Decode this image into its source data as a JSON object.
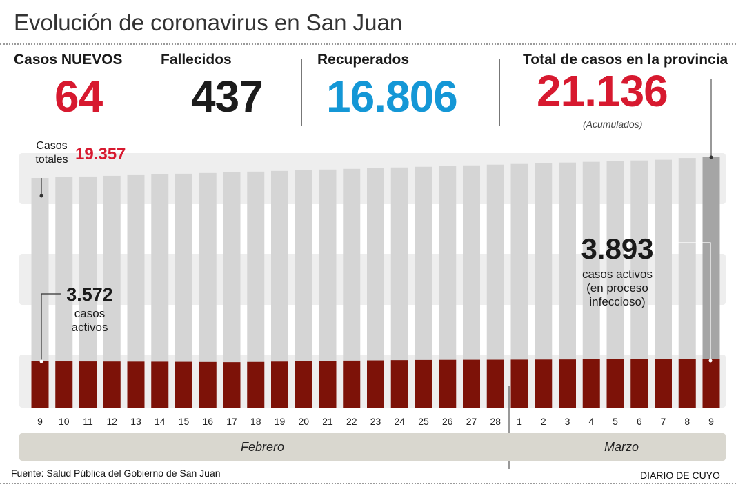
{
  "title": "Evolución de coronavirus en San Juan",
  "stats": {
    "new": {
      "label": "Casos NUEVOS",
      "value": "64"
    },
    "deaths": {
      "label": "Fallecidos",
      "value": "437"
    },
    "recovered": {
      "label": "Recuperados",
      "value": "16.806"
    },
    "total": {
      "label": "Total de casos en la provincia",
      "value": "21.136",
      "note": "(Acumulados)"
    }
  },
  "colors": {
    "red": "#d7192f",
    "blue": "#1497d6",
    "dark": "#1c1c1c",
    "bar_total": "#d5d5d5",
    "bar_total_last": "#a5a5a5",
    "bar_active": "#7d1208",
    "band": "#eeeeee"
  },
  "annotations": {
    "totals_label_1": "Casos",
    "totals_label_2": "totales",
    "totals_start": "19.357",
    "active_start": "3.572",
    "active_start_label_1": "casos",
    "active_start_label_2": "activos",
    "active_end": "3.893",
    "active_end_label_1": "casos activos",
    "active_end_label_2": "(en proceso",
    "active_end_label_3": "infeccioso)"
  },
  "months": {
    "feb": "Febrero",
    "mar": "Marzo"
  },
  "footer": {
    "source": "Fuente: Salud Pública del Gobierno de San Juan",
    "brand": "DIARIO DE CUYO"
  },
  "chart_data": {
    "type": "bar",
    "categories": [
      "9",
      "10",
      "11",
      "12",
      "13",
      "14",
      "15",
      "16",
      "17",
      "18",
      "19",
      "20",
      "21",
      "22",
      "23",
      "24",
      "25",
      "26",
      "27",
      "28",
      "1",
      "2",
      "3",
      "4",
      "5",
      "6",
      "7",
      "8",
      "9"
    ],
    "series": [
      {
        "name": "Casos totales",
        "values": [
          19357,
          19420,
          19480,
          19540,
          19600,
          19660,
          19720,
          19780,
          19840,
          19900,
          19960,
          20020,
          20080,
          20140,
          20200,
          20260,
          20320,
          20380,
          20440,
          20500,
          20560,
          20620,
          20680,
          20740,
          20800,
          20860,
          20920,
          21072,
          21136
        ]
      },
      {
        "name": "Casos activos",
        "values": [
          3572,
          3570,
          3565,
          3555,
          3545,
          3538,
          3525,
          3505,
          3480,
          3510,
          3550,
          3580,
          3620,
          3660,
          3690,
          3720,
          3740,
          3755,
          3765,
          3770,
          3780,
          3790,
          3800,
          3820,
          3840,
          3860,
          3870,
          3880,
          3893
        ]
      }
    ],
    "ylim": [
      0,
      21500
    ]
  }
}
